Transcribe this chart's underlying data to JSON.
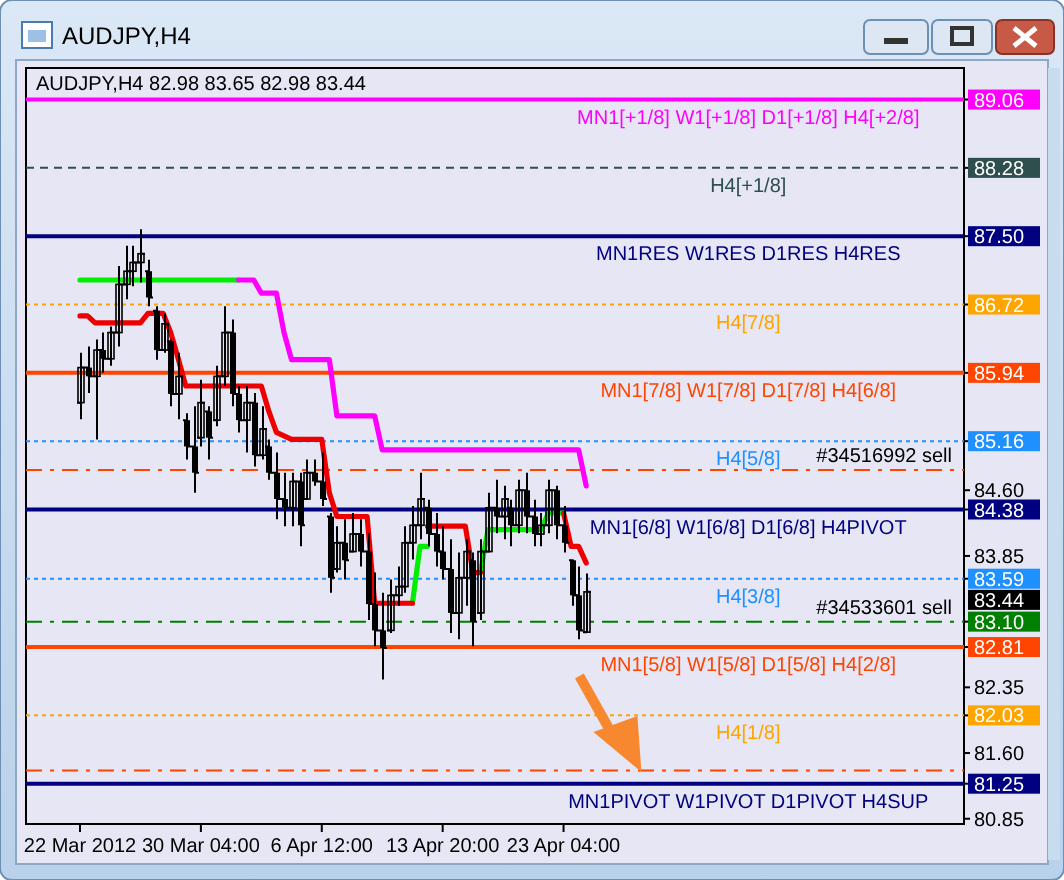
{
  "chart_data": {
    "type": "candlestick",
    "title": "AUDJPY,H4",
    "subtitle": "AUDJPY,H4  82.98 83.65 82.98 83.44",
    "categories": [
      "22 Mar 2012",
      null,
      null,
      null,
      null,
      null,
      null,
      null,
      null,
      null,
      null,
      null,
      null,
      null,
      null,
      null,
      "30 Mar 04:00",
      null,
      null,
      null,
      null,
      null,
      null,
      null,
      null,
      null,
      null,
      null,
      null,
      null,
      null,
      null,
      "6 Apr 12:00",
      null,
      null,
      null,
      null,
      null,
      null,
      null,
      null,
      null,
      null,
      null,
      null,
      null,
      null,
      null,
      "13 Apr 20:00",
      null,
      null,
      null,
      null,
      null,
      null,
      null,
      null,
      null,
      null,
      null,
      null,
      null,
      null,
      null,
      "23 Apr 04:00",
      null,
      null,
      null,
      null,
      null,
      null,
      null,
      null,
      null,
      null,
      null,
      null,
      null,
      null,
      null,
      null,
      null,
      null,
      null,
      null,
      null,
      null,
      null,
      null,
      null,
      null,
      null,
      null,
      null,
      null,
      null,
      null,
      null,
      null,
      null,
      null,
      null,
      null,
      null,
      null,
      null,
      null,
      null,
      null,
      null,
      null,
      null,
      null,
      null,
      null,
      null,
      null
    ],
    "ohlc": [
      [
        85.6,
        86.17,
        85.41,
        86.0
      ],
      [
        86.0,
        86.24,
        85.71,
        85.9
      ],
      [
        85.9,
        86.32,
        85.18,
        86.2
      ],
      [
        86.2,
        86.4,
        85.94,
        86.1
      ],
      [
        86.1,
        86.47,
        86.02,
        86.4
      ],
      [
        86.4,
        87.16,
        86.24,
        86.95
      ],
      [
        86.95,
        87.39,
        86.78,
        87.1
      ],
      [
        87.1,
        87.39,
        86.93,
        87.2
      ],
      [
        87.2,
        87.58,
        86.97,
        87.3
      ],
      [
        87.1,
        87.23,
        86.7,
        86.8
      ],
      [
        86.65,
        86.7,
        86.09,
        86.2
      ],
      [
        86.2,
        86.62,
        86.17,
        86.5
      ],
      [
        86.3,
        86.32,
        85.56,
        85.7
      ],
      [
        85.7,
        86.17,
        85.41,
        85.9
      ],
      [
        85.4,
        85.48,
        84.95,
        85.1
      ],
      [
        85.1,
        85.56,
        84.57,
        84.8
      ],
      [
        85.2,
        85.86,
        85.1,
        85.6
      ],
      [
        85.5,
        85.56,
        84.95,
        85.2
      ],
      [
        85.4,
        86.02,
        85.33,
        85.9
      ],
      [
        85.9,
        86.7,
        85.79,
        86.4
      ],
      [
        86.4,
        86.55,
        85.56,
        85.7
      ],
      [
        85.7,
        85.79,
        85.26,
        85.4
      ],
      [
        85.4,
        85.79,
        85.03,
        85.6
      ],
      [
        85.6,
        85.71,
        84.87,
        85.0
      ],
      [
        85.0,
        85.56,
        84.95,
        85.3
      ],
      [
        85.1,
        85.18,
        84.72,
        84.8
      ],
      [
        84.8,
        85.03,
        84.27,
        84.5
      ],
      [
        84.5,
        84.8,
        84.19,
        84.4
      ],
      [
        84.4,
        84.8,
        84.19,
        84.7
      ],
      [
        84.7,
        84.8,
        83.96,
        84.2
      ],
      [
        84.5,
        84.95,
        84.49,
        84.8
      ],
      [
        84.8,
        84.95,
        84.65,
        84.7
      ],
      [
        84.7,
        85.03,
        84.42,
        84.5
      ],
      [
        84.3,
        84.34,
        83.43,
        83.6
      ],
      [
        83.7,
        84.19,
        83.66,
        84.0
      ],
      [
        84.0,
        84.27,
        83.58,
        83.8
      ],
      [
        83.9,
        84.34,
        83.89,
        84.1
      ],
      [
        84.1,
        84.27,
        83.73,
        83.9
      ],
      [
        83.9,
        84.11,
        83.12,
        83.3
      ],
      [
        83.3,
        83.66,
        82.82,
        83.0
      ],
      [
        83.0,
        83.43,
        82.44,
        82.8
      ],
      [
        83.0,
        83.58,
        82.97,
        83.4
      ],
      [
        83.4,
        83.73,
        83.28,
        83.5
      ],
      [
        83.5,
        84.19,
        83.43,
        84.0
      ],
      [
        84.0,
        84.42,
        83.81,
        84.2
      ],
      [
        84.2,
        84.8,
        84.04,
        84.5
      ],
      [
        84.4,
        84.49,
        83.96,
        84.1
      ],
      [
        84.1,
        84.34,
        83.73,
        83.9
      ],
      [
        83.9,
        84.19,
        83.58,
        83.7
      ],
      [
        83.7,
        84.04,
        82.97,
        83.2
      ],
      [
        83.2,
        83.89,
        82.9,
        83.6
      ],
      [
        83.6,
        84.04,
        83.28,
        83.9
      ],
      [
        83.8,
        83.89,
        82.82,
        83.1
      ],
      [
        83.2,
        84.04,
        83.12,
        83.9
      ],
      [
        83.9,
        84.57,
        83.89,
        84.4
      ],
      [
        84.4,
        84.72,
        84.11,
        84.3
      ],
      [
        84.3,
        84.65,
        84.04,
        84.5
      ],
      [
        84.4,
        84.49,
        83.96,
        84.2
      ],
      [
        84.2,
        84.72,
        84.11,
        84.6
      ],
      [
        84.6,
        84.8,
        84.11,
        84.3
      ],
      [
        84.3,
        84.49,
        83.96,
        84.1
      ],
      [
        84.1,
        84.34,
        83.96,
        84.2
      ],
      [
        84.2,
        84.72,
        84.11,
        84.6
      ],
      [
        84.6,
        84.65,
        84.04,
        84.2
      ],
      [
        84.2,
        84.42,
        83.89,
        84.0
      ],
      [
        83.8,
        83.81,
        83.28,
        83.4
      ],
      [
        83.4,
        83.73,
        82.9,
        83.0
      ],
      [
        82.98,
        83.65,
        82.98,
        83.44
      ],
      null,
      null,
      null,
      null,
      null,
      null,
      null,
      null,
      null,
      null,
      null,
      null,
      null,
      null,
      null,
      null,
      null,
      null,
      null,
      null,
      null,
      null,
      null,
      null,
      null,
      null,
      null,
      null,
      null,
      null,
      null,
      null,
      null,
      null,
      null,
      null,
      null,
      null,
      null,
      null,
      null,
      null,
      null,
      null,
      null,
      null,
      null,
      null,
      null
    ],
    "color": "#000000",
    "series": [
      {
        "type": "line",
        "color": "#00ee00",
        "values": [
          87.0,
          87.0,
          87.0,
          87.0,
          87.0,
          87.0,
          87.0,
          87.0,
          87.0,
          87.0,
          87.0,
          87.0,
          87.0,
          87.0,
          87.0,
          87.0,
          87.0,
          87.0,
          87.0,
          87.0,
          87.0,
          87.0,
          null,
          null,
          null,
          null,
          null,
          null,
          null,
          null,
          null,
          null,
          null,
          null,
          null,
          null,
          null,
          null,
          null,
          null,
          null,
          null,
          null,
          null,
          83.31,
          83.96,
          83.96,
          null,
          null,
          null,
          null,
          null,
          null,
          83.66,
          84.15,
          84.15,
          84.15,
          84.15,
          84.15,
          84.15,
          84.15,
          84.15,
          84.34,
          84.34,
          84.34,
          null,
          null,
          null,
          null,
          null,
          null,
          null,
          null,
          null,
          null,
          null,
          null,
          null,
          null,
          null,
          null,
          null,
          null,
          null,
          null,
          null,
          null,
          null,
          null,
          null,
          null,
          null,
          null,
          null,
          null,
          null,
          null,
          null,
          null,
          null,
          null,
          null,
          null,
          null,
          null,
          null,
          null,
          null,
          null,
          null,
          null,
          null,
          null,
          null,
          null,
          null,
          null
        ]
      },
      {
        "type": "line",
        "color": "#ee0000",
        "values": [
          86.59,
          86.59,
          86.51,
          86.51,
          86.51,
          86.51,
          86.51,
          86.51,
          86.51,
          86.62,
          86.62,
          86.62,
          86.4,
          86.1,
          85.79,
          85.79,
          85.79,
          85.79,
          85.79,
          85.79,
          85.79,
          85.79,
          85.79,
          85.79,
          85.79,
          85.5,
          85.26,
          85.22,
          85.18,
          85.18,
          85.18,
          85.18,
          85.18,
          84.57,
          84.3,
          84.3,
          84.3,
          84.3,
          84.3,
          83.31,
          83.31,
          83.31,
          83.31,
          83.31,
          83.31,
          null,
          84.19,
          84.19,
          84.19,
          84.19,
          84.19,
          84.19,
          83.66,
          83.66,
          null,
          null,
          null,
          null,
          null,
          null,
          null,
          null,
          null,
          null,
          84.34,
          83.96,
          83.96,
          83.77,
          null,
          null,
          null,
          null,
          null,
          null,
          null,
          null,
          null,
          null,
          null,
          null,
          null,
          null,
          null,
          null,
          null,
          null,
          null,
          null,
          null,
          null,
          null,
          null,
          null,
          null,
          null,
          null,
          null,
          null,
          null,
          null,
          null,
          null,
          null,
          null,
          null,
          null,
          null,
          null,
          null,
          null,
          null,
          null,
          null,
          null,
          null,
          null,
          null
        ]
      },
      {
        "type": "line",
        "color": "#ff00ff",
        "values": [
          null,
          null,
          null,
          null,
          null,
          null,
          null,
          null,
          null,
          null,
          null,
          null,
          null,
          null,
          null,
          null,
          null,
          null,
          null,
          null,
          null,
          87.0,
          87.0,
          87.0,
          86.85,
          86.85,
          86.85,
          86.4,
          86.09,
          86.09,
          86.09,
          86.09,
          86.09,
          86.09,
          85.45,
          85.45,
          85.45,
          85.45,
          85.45,
          85.45,
          85.06,
          85.06,
          85.06,
          85.06,
          85.06,
          85.06,
          85.06,
          85.06,
          85.06,
          85.06,
          85.06,
          85.06,
          85.06,
          85.06,
          85.06,
          85.06,
          85.06,
          85.06,
          85.06,
          85.06,
          85.06,
          85.06,
          85.06,
          85.06,
          85.06,
          85.06,
          85.06,
          84.65,
          null,
          null,
          null,
          null,
          null,
          null,
          null,
          null,
          null,
          null,
          null,
          null,
          null,
          null,
          null,
          null,
          null,
          null,
          null,
          null,
          null,
          null,
          null,
          null,
          null,
          null,
          null,
          null,
          null,
          null,
          null,
          null,
          null,
          null,
          null,
          null,
          null,
          null,
          null,
          null,
          null,
          null,
          null,
          null,
          null,
          null,
          null,
          null,
          null
        ]
      }
    ],
    "ylim": [
      80.79,
      89.42
    ],
    "yticks": [
      {
        "value": 80.85,
        "label": "80.85"
      },
      {
        "value": 81.25,
        "label": "81.25"
      },
      {
        "value": 81.6,
        "label": "81.60"
      },
      {
        "value": 82.03,
        "label": "82.03"
      },
      {
        "value": 82.35,
        "label": "82.35"
      },
      {
        "value": 82.81,
        "label": "82.81"
      },
      {
        "value": 83.1,
        "label": "83.10"
      },
      {
        "value": 83.59,
        "label": "83.59"
      },
      {
        "value": 83.85,
        "label": "83.85"
      },
      {
        "value": 84.38,
        "label": "84.38"
      },
      {
        "value": 84.6,
        "label": "84.60"
      },
      {
        "value": 85.16,
        "label": "85.16"
      },
      {
        "value": 85.94,
        "label": "85.94"
      },
      {
        "value": 86.72,
        "label": "86.72"
      },
      {
        "value": 87.5,
        "label": "87.50"
      },
      {
        "value": 88.28,
        "label": "88.28"
      },
      {
        "value": 89.06,
        "label": "89.06"
      }
    ],
    "ref_lines": [
      {
        "axis": "y",
        "value": 89.06,
        "label": "MN1[+1/8] W1[+1/8] D1[+1/8] H4[+2/8]",
        "color": "#ff00ff",
        "line_style": "solid"
      },
      {
        "axis": "y",
        "value": 88.28,
        "label": "H4[+1/8]",
        "color": "#2f4f4f",
        "line_style": "dashed"
      },
      {
        "axis": "y",
        "value": 87.5,
        "label": "MN1RES W1RES D1RES H4RES",
        "color": "#000080",
        "line_style": "solid"
      },
      {
        "axis": "y",
        "value": 86.72,
        "label": "H4[7/8]",
        "color": "#ffa500",
        "line_style": "dotted"
      },
      {
        "axis": "y",
        "value": 85.94,
        "label": "MN1[7/8] W1[7/8] D1[7/8] H4[6/8]",
        "color": "#ff4500",
        "line_style": "solid"
      },
      {
        "axis": "y",
        "value": 85.16,
        "label": "H4[5/8]",
        "color": "#1e90ff",
        "line_style": "dotted"
      },
      {
        "axis": "y",
        "value": 84.83,
        "label": "#34516992 sell",
        "color": "#ff4500",
        "line_style": "dashdot"
      },
      {
        "axis": "y",
        "value": 84.38,
        "label": "MN1[6/8] W1[6/8] D1[6/8] H4PIVOT",
        "color": "#000080",
        "line_style": "solid"
      },
      {
        "axis": "y",
        "value": 83.59,
        "label": "H4[3/8]",
        "color": "#1e90ff",
        "line_style": "dotted"
      },
      {
        "axis": "y",
        "value": 83.1,
        "label": "#34533601 sell",
        "color": "#008000",
        "line_style": "dashdot"
      },
      {
        "axis": "y",
        "value": 82.81,
        "label": "MN1[5/8] W1[5/8] D1[5/8] H4[2/8]",
        "color": "#ff4500",
        "line_style": "solid"
      },
      {
        "axis": "y",
        "value": 82.03,
        "label": "H4[1/8]",
        "color": "#ffa500",
        "line_style": "dotted"
      },
      {
        "axis": "y",
        "value": 81.4,
        "label": null,
        "color": "#ff4500",
        "line_style": "dashdot"
      },
      {
        "axis": "y",
        "value": 81.25,
        "label": "MN1PIVOT W1PIVOT D1PIVOT H4SUP",
        "color": "#000080",
        "line_style": "solid"
      }
    ],
    "annotations": [
      "83.44"
    ]
  }
}
